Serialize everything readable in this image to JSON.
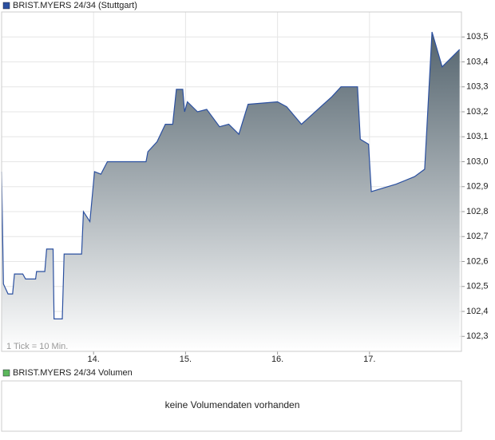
{
  "chart_data": {
    "type": "line",
    "series": [
      {
        "name": "BRIST.MYERS 24/34 (Stuttgart)",
        "color": "#2b50a0",
        "x": [
          13.0,
          13.02,
          13.07,
          13.12,
          13.14,
          13.23,
          13.26,
          13.37,
          13.38,
          13.47,
          13.49,
          13.56,
          13.57,
          13.66,
          13.68,
          13.87,
          13.89,
          13.96,
          14.01,
          14.08,
          14.15,
          14.57,
          14.59,
          14.69,
          14.78,
          14.86,
          14.9,
          14.97,
          14.99,
          15.02,
          15.13,
          15.23,
          15.37,
          15.47,
          15.58,
          15.68,
          16.0,
          16.1,
          16.26,
          16.47,
          16.59,
          16.69,
          16.87,
          16.9,
          16.99,
          17.02,
          17.29,
          17.49,
          17.6,
          17.68,
          17.79,
          17.98
        ],
        "values": [
          102.96,
          102.51,
          102.47,
          102.47,
          102.55,
          102.55,
          102.53,
          102.53,
          102.56,
          102.56,
          102.65,
          102.65,
          102.37,
          102.37,
          102.63,
          102.63,
          102.8,
          102.76,
          102.96,
          102.95,
          103.0,
          103.0,
          103.04,
          103.08,
          103.15,
          103.15,
          103.29,
          103.29,
          103.2,
          103.24,
          103.2,
          103.21,
          103.14,
          103.15,
          103.11,
          103.23,
          103.24,
          103.22,
          103.15,
          103.22,
          103.26,
          103.3,
          103.3,
          103.09,
          103.07,
          102.88,
          102.91,
          102.94,
          102.97,
          103.52,
          103.38,
          103.45
        ]
      }
    ],
    "xlim": [
      13,
      18
    ],
    "xticks": [
      {
        "value": 14,
        "label": "14."
      },
      {
        "value": 15,
        "label": "15."
      },
      {
        "value": 16,
        "label": "16."
      },
      {
        "value": 17,
        "label": "17."
      }
    ],
    "ylim": [
      102.24,
      103.6
    ],
    "yticks": [
      {
        "value": 102.3,
        "label": "102,3"
      },
      {
        "value": 102.4,
        "label": "102,4"
      },
      {
        "value": 102.5,
        "label": "102,5"
      },
      {
        "value": 102.6,
        "label": "102,6"
      },
      {
        "value": 102.7,
        "label": "102,7"
      },
      {
        "value": 102.8,
        "label": "102,8"
      },
      {
        "value": 102.9,
        "label": "102,9"
      },
      {
        "value": 103.0,
        "label": "103,0"
      },
      {
        "value": 103.1,
        "label": "103,1"
      },
      {
        "value": 103.2,
        "label": "103,2"
      },
      {
        "value": 103.3,
        "label": "103,3"
      },
      {
        "value": 103.4,
        "label": "103,4"
      },
      {
        "value": 103.5,
        "label": "103,5"
      }
    ],
    "grid": true,
    "annotation": "1 Tick = 10 Min."
  },
  "volume_panel": {
    "legend": "BRIST.MYERS 24/34 Volumen",
    "legend_color": "#5cb85c",
    "message": "keine Volumendaten vorhanden"
  }
}
